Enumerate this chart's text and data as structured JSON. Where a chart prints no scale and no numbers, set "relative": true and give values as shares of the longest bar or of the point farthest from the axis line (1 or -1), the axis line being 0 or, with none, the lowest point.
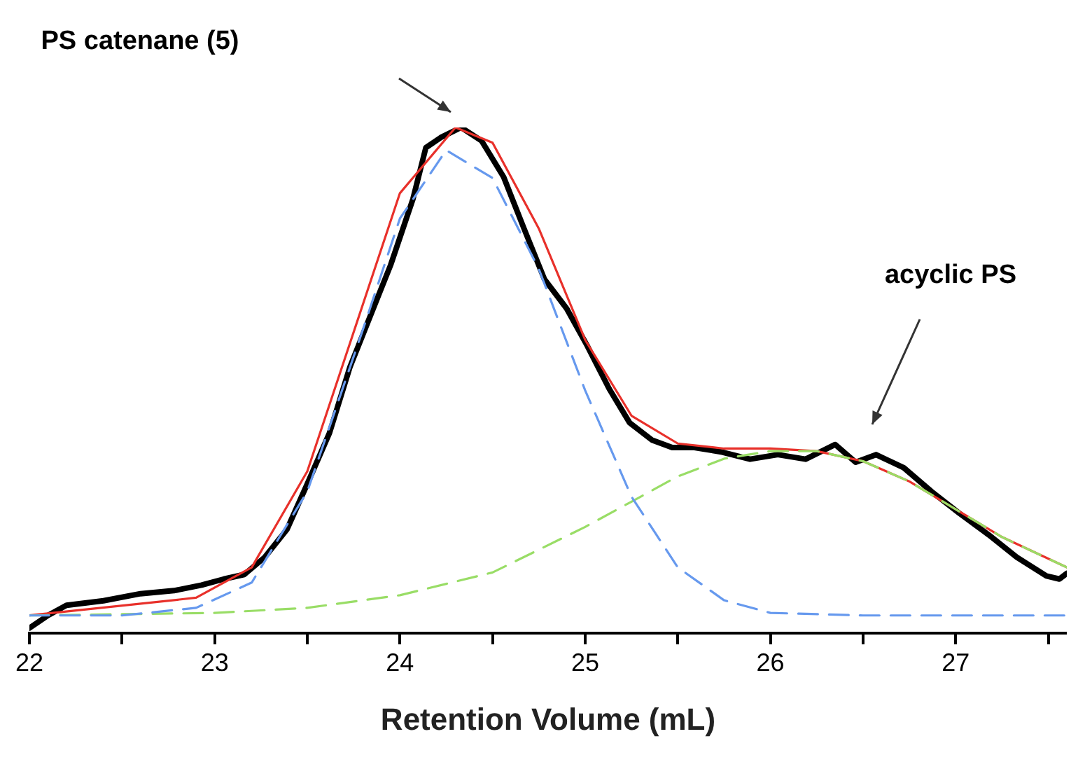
{
  "chart_data": {
    "type": "line",
    "relative": true,
    "xlabel": "Retention Volume (mL)",
    "xlim": [
      22,
      27.6
    ],
    "xticks": [
      22,
      {
        "value": 22.5,
        "label": null
      },
      23,
      {
        "value": 23.5,
        "label": null
      },
      24,
      {
        "value": 24.5,
        "label": null
      },
      25,
      {
        "value": 25.5,
        "label": null
      },
      26,
      {
        "value": 26.5,
        "label": null
      },
      27,
      {
        "value": 27.5,
        "label": null
      }
    ],
    "grid": false,
    "legend": false,
    "marker": "none",
    "annotations": [
      "PS catenane (5)",
      "acyclic PS"
    ],
    "series": [
      {
        "color": "#000000",
        "line_style": "solid",
        "x": [
          22,
          22.1,
          22.2,
          22.4,
          22.6,
          22.78,
          22.93,
          23.05,
          23.16,
          23.27,
          23.39,
          23.5,
          23.62,
          23.73,
          23.84,
          23.95,
          24.07,
          24.14,
          24.22,
          24.33,
          24.44,
          24.56,
          24.67,
          24.78,
          24.9,
          25.01,
          25.13,
          25.24,
          25.36,
          25.47,
          25.59,
          25.74,
          25.89,
          26.04,
          26.19,
          26.35,
          26.46,
          26.57,
          26.72,
          26.87,
          27.02,
          27.18,
          27.33,
          27.49,
          27.56,
          27.6
        ],
        "values": [
          0.01,
          0.035,
          0.055,
          0.064,
          0.078,
          0.084,
          0.095,
          0.107,
          0.116,
          0.15,
          0.205,
          0.295,
          0.396,
          0.526,
          0.627,
          0.728,
          0.858,
          0.96,
          0.98,
          1.0,
          0.974,
          0.902,
          0.8,
          0.7,
          0.642,
          0.569,
          0.483,
          0.416,
          0.382,
          0.367,
          0.367,
          0.358,
          0.344,
          0.353,
          0.344,
          0.373,
          0.338,
          0.353,
          0.327,
          0.28,
          0.237,
          0.194,
          0.15,
          0.113,
          0.107,
          0.118
        ]
      },
      {
        "color": "#6699ee",
        "line_style": "dashed",
        "x": [
          22,
          22.5,
          22.9,
          23.2,
          23.5,
          23.8,
          24.0,
          24.25,
          24.5,
          24.75,
          25.0,
          25.25,
          25.5,
          25.75,
          26.0,
          26.5,
          27.6
        ],
        "values": [
          0.035,
          0.035,
          0.05,
          0.1,
          0.28,
          0.6,
          0.82,
          0.955,
          0.9,
          0.72,
          0.48,
          0.27,
          0.13,
          0.065,
          0.04,
          0.035,
          0.035
        ]
      },
      {
        "color": "#99dd66",
        "line_style": "dashed",
        "x": [
          22,
          23,
          23.5,
          24,
          24.5,
          24.75,
          25,
          25.25,
          25.5,
          25.75,
          26,
          26.25,
          26.5,
          26.75,
          27,
          27.25,
          27.6
        ],
        "values": [
          0.035,
          0.04,
          0.05,
          0.075,
          0.12,
          0.165,
          0.21,
          0.26,
          0.31,
          0.345,
          0.36,
          0.36,
          0.34,
          0.3,
          0.245,
          0.19,
          0.13
        ]
      },
      {
        "color": "#e8302a",
        "line_style": "solid",
        "x": [
          22,
          22.9,
          23.2,
          23.5,
          23.8,
          24,
          24.3,
          24.5,
          24.75,
          25,
          25.25,
          25.5,
          25.75,
          26,
          26.25,
          26.5,
          26.75,
          27,
          27.25,
          27.6
        ],
        "values": [
          0.035,
          0.07,
          0.13,
          0.32,
          0.65,
          0.87,
          1.0,
          0.97,
          0.8,
          0.58,
          0.43,
          0.375,
          0.365,
          0.365,
          0.36,
          0.34,
          0.3,
          0.245,
          0.19,
          0.13
        ]
      }
    ]
  }
}
